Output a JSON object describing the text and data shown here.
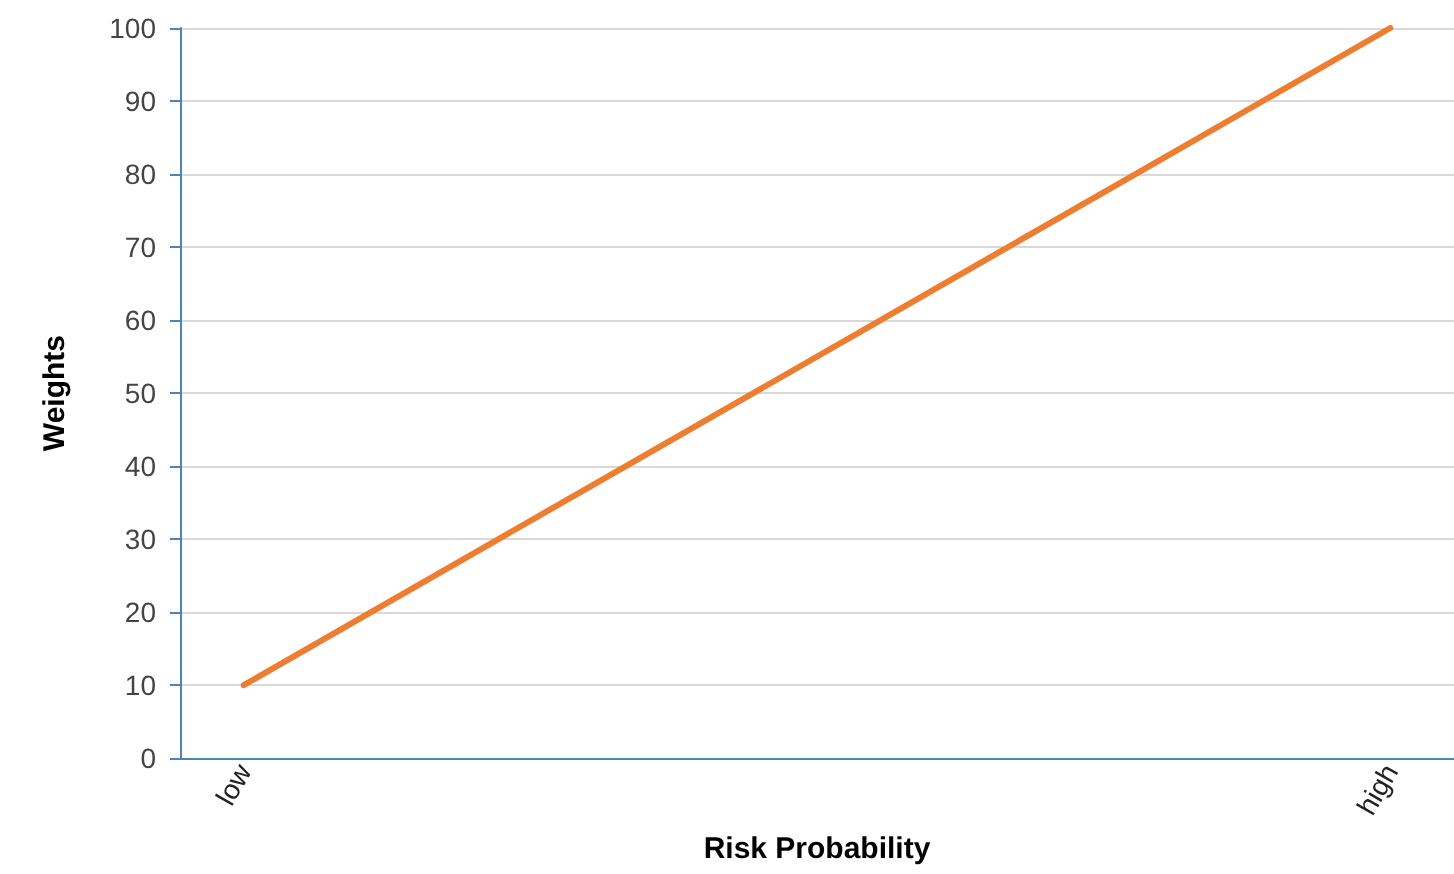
{
  "chart_data": {
    "type": "line",
    "xlabel": "Risk Probability",
    "ylabel": "Weights",
    "categories": [
      "low",
      null,
      null,
      null,
      null,
      null,
      null,
      null,
      null,
      "high"
    ],
    "series": [
      {
        "color": "#ed7d31",
        "values": [
          10,
          20,
          30,
          40,
          50,
          60,
          70,
          80,
          90,
          100
        ]
      }
    ],
    "ylim": [
      0,
      100
    ],
    "yticks": [
      0,
      10,
      20,
      30,
      40,
      50,
      60,
      70,
      80,
      90,
      100
    ],
    "grid": "y",
    "marker": "none",
    "line_style": "solid"
  }
}
